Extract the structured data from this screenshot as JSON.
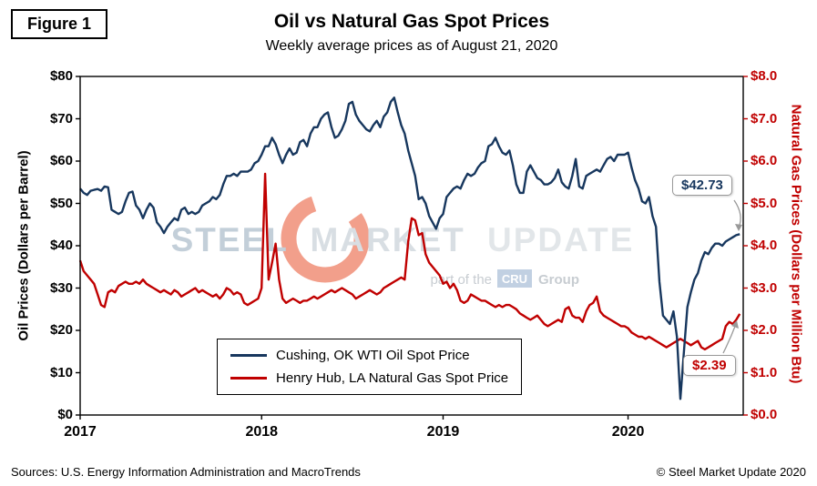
{
  "figure_label": "Figure 1",
  "title": "Oil vs Natural Gas Spot Prices",
  "subtitle": "Weekly average prices as of August 21, 2020",
  "left_axis": {
    "title": "Oil Prices (Dollars per Barrel)",
    "ticks": [
      "$0",
      "$10",
      "$20",
      "$30",
      "$40",
      "$50",
      "$60",
      "$70",
      "$80"
    ]
  },
  "right_axis": {
    "title": "Natural Gas Prices (Dollars per Million Btu)",
    "ticks": [
      "$0.0",
      "$1.0",
      "$2.0",
      "$3.0",
      "$4.0",
      "$5.0",
      "$6.0",
      "$7.0",
      "$8.0"
    ]
  },
  "legend": {
    "items": [
      {
        "label": "Cushing, OK WTI Oil Spot Price",
        "color": "#17375E"
      },
      {
        "label": "Henry Hub, LA Natural Gas Spot Price",
        "color": "#C00000"
      }
    ]
  },
  "annotations": {
    "oil_last": "$42.73",
    "gas_last": "$2.39"
  },
  "watermark": {
    "logo_icon": "smu-ring-logo",
    "word1": "STEEL",
    "word2": "MARKET",
    "word3": "UPDATE",
    "part_of": "part of the",
    "cru": "CRU",
    "group": "Group"
  },
  "footer": {
    "sources": "Sources: U.S. Energy Information Administration and MacroTrends",
    "copyright": "© Steel Market Update 2020"
  },
  "colors": {
    "oil": "#17375E",
    "gas": "#C00000",
    "accent_orange": "#E8512D"
  },
  "chart_data": {
    "type": "line",
    "title": "Oil vs Natural Gas Spot Prices",
    "subtitle": "Weekly average prices as of August 21, 2020",
    "x_unit": "week_index_from_2017",
    "x_domain": [
      0,
      190
    ],
    "x_tick_positions": [
      0,
      52,
      104,
      157
    ],
    "x_tick_labels": [
      "2017",
      "2018",
      "2019",
      "2020"
    ],
    "left_ylabel": "Oil Prices (Dollars per Barrel)",
    "right_ylabel": "Natural Gas Prices (Dollars per Million Btu)",
    "left_ylim": [
      0,
      80
    ],
    "right_ylim": [
      0,
      8
    ],
    "grid": false,
    "legend_position": "inside-bottom-center",
    "series": [
      {
        "name": "Cushing, OK WTI Oil Spot Price",
        "axis": "left",
        "color": "#17375E",
        "last_value": 42.73,
        "values": [
          53.5,
          52.5,
          52.0,
          53.0,
          53.2,
          53.4,
          53.0,
          54.0,
          53.8,
          48.5,
          48.0,
          47.5,
          48.0,
          50.5,
          52.5,
          52.8,
          49.5,
          48.5,
          46.5,
          48.5,
          50.0,
          49.0,
          45.5,
          44.5,
          43.0,
          44.5,
          45.5,
          46.5,
          46.0,
          48.5,
          49.0,
          47.5,
          48.0,
          47.5,
          48.0,
          49.5,
          50.0,
          50.5,
          51.5,
          51.0,
          52.0,
          54.5,
          56.5,
          56.5,
          57.0,
          56.5,
          57.5,
          57.5,
          57.5,
          58.0,
          59.5,
          60.0,
          61.5,
          63.5,
          63.5,
          65.5,
          64.0,
          61.5,
          59.5,
          61.5,
          63.0,
          61.5,
          62.0,
          64.5,
          65.0,
          63.5,
          66.5,
          68.0,
          68.0,
          70.0,
          71.0,
          71.5,
          68.0,
          65.5,
          66.0,
          67.5,
          69.5,
          73.5,
          74.0,
          71.0,
          69.5,
          68.5,
          67.5,
          67.0,
          68.5,
          69.5,
          68.0,
          70.5,
          71.5,
          74.0,
          75.0,
          71.5,
          68.5,
          66.5,
          62.5,
          59.5,
          56.5,
          51.0,
          51.5,
          50.0,
          47.0,
          45.5,
          44.0,
          46.5,
          47.5,
          51.5,
          52.5,
          53.5,
          54.0,
          53.5,
          55.5,
          57.0,
          56.5,
          57.0,
          58.5,
          59.5,
          60.0,
          63.5,
          64.0,
          65.5,
          63.5,
          62.0,
          61.5,
          62.5,
          59.0,
          54.5,
          52.5,
          52.5,
          57.5,
          59.0,
          57.5,
          56.0,
          55.5,
          54.5,
          54.5,
          55.0,
          56.0,
          58.0,
          55.0,
          54.0,
          53.5,
          56.5,
          60.5,
          54.0,
          53.5,
          56.5,
          57.0,
          57.5,
          58.0,
          57.5,
          59.0,
          60.5,
          61.0,
          60.0,
          61.5,
          61.5,
          61.5,
          62.0,
          58.5,
          55.5,
          53.5,
          50.5,
          50.0,
          51.5,
          47.0,
          44.5,
          31.5,
          23.5,
          22.5,
          21.5,
          24.5,
          18.5,
          3.8,
          15.0,
          25.5,
          29.0,
          32.0,
          33.5,
          36.5,
          38.5,
          38.0,
          39.5,
          40.5,
          40.5,
          40.0,
          41.0,
          41.5,
          42.0,
          42.5,
          42.73
        ]
      },
      {
        "name": "Henry Hub, LA Natural Gas Spot Price",
        "axis": "right",
        "color": "#C00000",
        "last_value": 2.39,
        "values": [
          3.65,
          3.4,
          3.3,
          3.2,
          3.1,
          2.85,
          2.6,
          2.55,
          2.9,
          2.95,
          2.9,
          3.05,
          3.1,
          3.15,
          3.1,
          3.1,
          3.15,
          3.1,
          3.2,
          3.1,
          3.05,
          3.0,
          2.95,
          2.9,
          2.95,
          2.9,
          2.85,
          2.95,
          2.9,
          2.8,
          2.85,
          2.9,
          2.95,
          3.0,
          2.9,
          2.95,
          2.9,
          2.85,
          2.8,
          2.85,
          2.75,
          2.85,
          3.0,
          2.95,
          2.85,
          2.9,
          2.85,
          2.65,
          2.6,
          2.65,
          2.7,
          2.75,
          3.0,
          5.7,
          3.2,
          3.6,
          4.05,
          3.2,
          2.75,
          2.65,
          2.7,
          2.75,
          2.7,
          2.65,
          2.7,
          2.7,
          2.75,
          2.8,
          2.75,
          2.8,
          2.85,
          2.9,
          2.95,
          2.9,
          2.95,
          3.0,
          2.95,
          2.9,
          2.85,
          2.75,
          2.8,
          2.85,
          2.9,
          2.95,
          2.9,
          2.85,
          2.9,
          3.0,
          3.05,
          3.1,
          3.15,
          3.2,
          3.25,
          3.2,
          4.1,
          4.65,
          4.6,
          4.25,
          4.3,
          3.8,
          3.6,
          3.5,
          3.4,
          3.3,
          3.1,
          3.15,
          3.0,
          3.1,
          2.95,
          2.7,
          2.65,
          2.7,
          2.85,
          2.8,
          2.75,
          2.7,
          2.7,
          2.65,
          2.6,
          2.55,
          2.6,
          2.55,
          2.6,
          2.6,
          2.55,
          2.5,
          2.4,
          2.35,
          2.3,
          2.25,
          2.3,
          2.35,
          2.25,
          2.15,
          2.1,
          2.15,
          2.2,
          2.25,
          2.2,
          2.5,
          2.55,
          2.35,
          2.3,
          2.3,
          2.2,
          2.45,
          2.6,
          2.65,
          2.8,
          2.45,
          2.35,
          2.3,
          2.25,
          2.2,
          2.15,
          2.1,
          2.1,
          2.05,
          1.95,
          1.9,
          1.85,
          1.85,
          1.8,
          1.85,
          1.8,
          1.75,
          1.7,
          1.65,
          1.6,
          1.65,
          1.7,
          1.75,
          1.8,
          1.75,
          1.7,
          1.65,
          1.7,
          1.75,
          1.6,
          1.55,
          1.6,
          1.65,
          1.7,
          1.75,
          1.8,
          2.1,
          2.2,
          2.15,
          2.25,
          2.39
        ]
      }
    ]
  }
}
